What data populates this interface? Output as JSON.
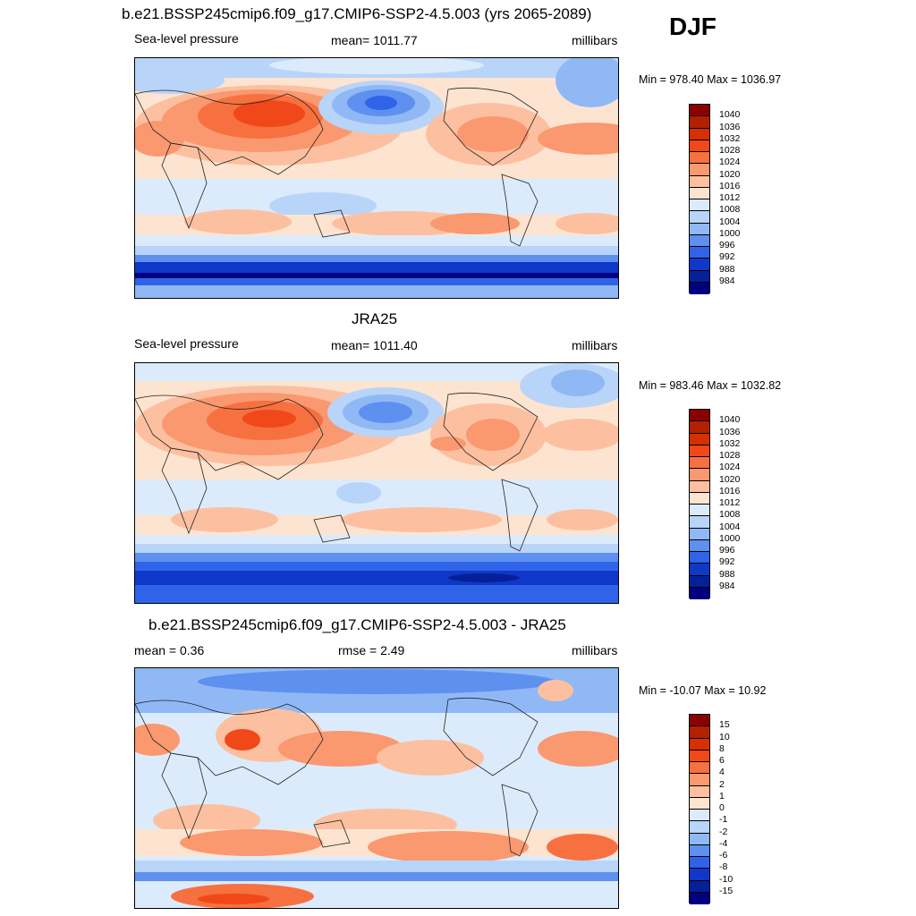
{
  "season": "DJF",
  "panels": [
    {
      "title": "b.e21.BSSP245cmip6.f09_g17.CMIP6-SSP2-4.5.003 (yrs 2065-2089)",
      "left": "Sea-level pressure",
      "center": "mean= 1011.77",
      "right": "millibars",
      "minmax": "Min = 978.40 Max = 1036.97"
    },
    {
      "title": "JRA25",
      "left": "Sea-level pressure",
      "center": "mean= 1011.40",
      "right": "millibars",
      "minmax": "Min = 983.46 Max = 1032.82"
    },
    {
      "title": "b.e21.BSSP245cmip6.f09_g17.CMIP6-SSP2-4.5.003 - JRA25",
      "left": "mean =   0.36",
      "center": "rmse =   2.49",
      "right": "millibars",
      "minmax": "Min = -10.07 Max =  10.92"
    }
  ],
  "colorbar_slp": {
    "labels": [
      "1040",
      "1036",
      "1032",
      "1028",
      "1024",
      "1020",
      "1016",
      "1012",
      "1008",
      "1004",
      "1000",
      "996",
      "992",
      "988",
      "984"
    ],
    "colors": [
      "#8b0000",
      "#b22000",
      "#d63000",
      "#f04818",
      "#f77040",
      "#fa9870",
      "#fcc0a0",
      "#fde4d0",
      "#dcebfb",
      "#b8d4f8",
      "#90b8f5",
      "#5e90f0",
      "#2f64e8",
      "#1038c8",
      "#06209a",
      "#000080"
    ]
  },
  "colorbar_diff": {
    "labels": [
      "15",
      "10",
      "8",
      "6",
      "4",
      "2",
      "1",
      "0",
      "-1",
      "-2",
      "-4",
      "-6",
      "-8",
      "-10",
      "-15"
    ],
    "colors": [
      "#8b0000",
      "#b22000",
      "#d63000",
      "#f04818",
      "#f77040",
      "#fa9870",
      "#fcc0a0",
      "#fde4d0",
      "#dcebfb",
      "#b8d4f8",
      "#90b8f5",
      "#5e90f0",
      "#2f64e8",
      "#1038c8",
      "#06209a",
      "#000080"
    ]
  }
}
